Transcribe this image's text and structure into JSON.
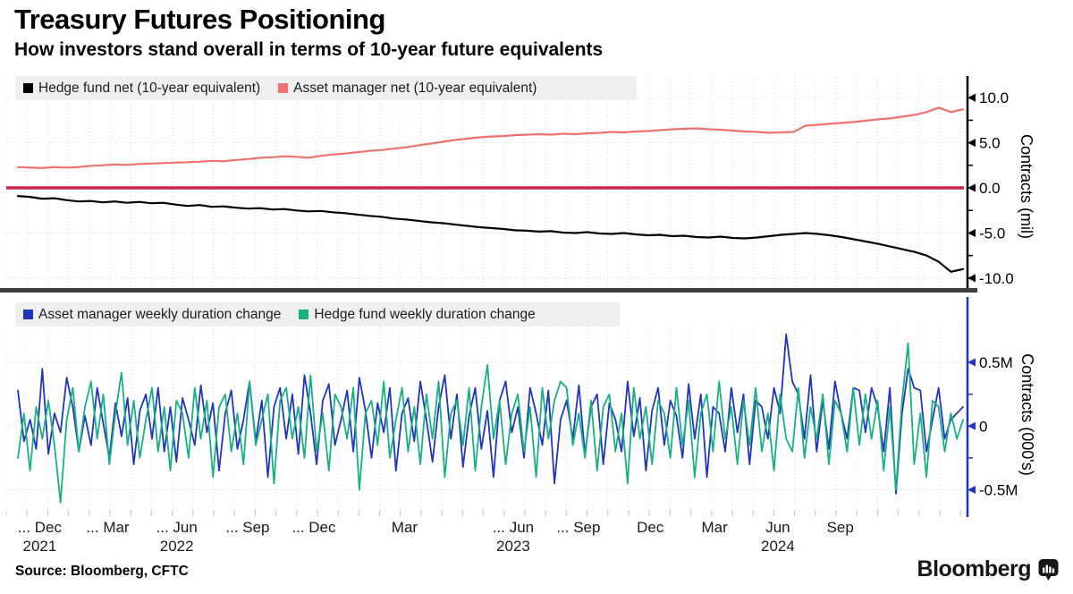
{
  "header": {
    "title": "Treasury Futures Positioning",
    "subtitle": "How investors stand overall in terms of 10-year future equivalents"
  },
  "source": {
    "text": "Source: Bloomberg, CFTC"
  },
  "branding": {
    "logo_text": "Bloomberg",
    "logo_icon": "bar-chart-bubble-icon"
  },
  "colors": {
    "hedge_fund_net": "#000000",
    "asset_manager_net": "#ef726d",
    "zero_line": "#d02346",
    "asset_manager_weekly": "#2136bf",
    "hedge_fund_weekly": "#17b183",
    "grid": "#d9d9d9",
    "divider": "#3e3e3e",
    "legend_bg": "#efefef"
  },
  "xaxis": {
    "labels": [
      {
        "text": "... Dec",
        "year": "2021",
        "f": 0.025
      },
      {
        "text": "... Mar",
        "year": "",
        "f": 0.097
      },
      {
        "text": "... Jun",
        "year": "2022",
        "f": 0.17
      },
      {
        "text": "... Sep",
        "year": "",
        "f": 0.245
      },
      {
        "text": "... Dec",
        "year": "",
        "f": 0.315
      },
      {
        "text": "Mar",
        "year": "",
        "f": 0.411
      },
      {
        "text": "... Jun",
        "year": "2023",
        "f": 0.526
      },
      {
        "text": "... Sep",
        "year": "",
        "f": 0.595
      },
      {
        "text": "Dec",
        "year": "",
        "f": 0.671
      },
      {
        "text": "Mar",
        "year": "",
        "f": 0.739
      },
      {
        "text": "Jun",
        "year": "2024",
        "f": 0.806
      },
      {
        "text": "Sep",
        "year": "",
        "f": 0.872
      }
    ]
  },
  "chart_data": [
    {
      "type": "line",
      "panel": "top",
      "ylabel": "Contracts (mil)",
      "ylim": [
        -11.4,
        12.4
      ],
      "yticks": [
        {
          "v": 10,
          "label": "10.0"
        },
        {
          "v": 5,
          "label": "5.0"
        },
        {
          "v": 0,
          "label": "0.0"
        },
        {
          "v": -5,
          "label": "-5.0"
        },
        {
          "v": -10,
          "label": "-10.0"
        }
      ],
      "yticks_minor": [
        7.5,
        2.5,
        -2.5,
        -7.5
      ],
      "zero_line_color": "#d02346",
      "x_range_note": "weekly, Oct 2021 - Oct 2024",
      "series": [
        {
          "name": "Hedge fund net (10-year equivalent)",
          "color": "#000000",
          "values": [
            -0.9,
            -1.0,
            -1.2,
            -1.15,
            -1.35,
            -1.5,
            -1.45,
            -1.6,
            -1.5,
            -1.65,
            -1.55,
            -1.7,
            -1.65,
            -1.85,
            -2.0,
            -1.9,
            -2.1,
            -2.05,
            -2.2,
            -2.3,
            -2.25,
            -2.4,
            -2.35,
            -2.5,
            -2.6,
            -2.55,
            -2.7,
            -2.8,
            -2.95,
            -3.1,
            -3.2,
            -3.4,
            -3.5,
            -3.65,
            -3.8,
            -3.9,
            -4.05,
            -4.2,
            -4.35,
            -4.45,
            -4.55,
            -4.7,
            -4.75,
            -4.85,
            -4.8,
            -4.95,
            -5.0,
            -4.9,
            -5.05,
            -5.1,
            -5.0,
            -5.15,
            -5.25,
            -5.2,
            -5.35,
            -5.3,
            -5.45,
            -5.5,
            -5.4,
            -5.55,
            -5.6,
            -5.5,
            -5.35,
            -5.2,
            -5.1,
            -5.0,
            -5.1,
            -5.25,
            -5.45,
            -5.7,
            -5.95,
            -6.2,
            -6.5,
            -6.8,
            -7.1,
            -7.5,
            -8.2,
            -9.3,
            -9.0
          ]
        },
        {
          "name": "Asset manager net (10-year equivalent)",
          "color": "#ef726d",
          "values": [
            2.3,
            2.25,
            2.2,
            2.3,
            2.25,
            2.3,
            2.45,
            2.5,
            2.6,
            2.55,
            2.65,
            2.7,
            2.75,
            2.8,
            2.85,
            2.9,
            3.0,
            2.95,
            3.1,
            3.2,
            3.35,
            3.4,
            3.5,
            3.45,
            3.35,
            3.55,
            3.7,
            3.8,
            3.95,
            4.1,
            4.2,
            4.35,
            4.5,
            4.7,
            4.9,
            5.1,
            5.3,
            5.45,
            5.6,
            5.7,
            5.75,
            5.85,
            5.9,
            5.95,
            5.9,
            6.0,
            5.95,
            6.05,
            6.1,
            6.2,
            6.15,
            6.25,
            6.3,
            6.4,
            6.5,
            6.55,
            6.6,
            6.5,
            6.45,
            6.35,
            6.25,
            6.2,
            6.1,
            6.15,
            6.2,
            6.9,
            7.0,
            7.1,
            7.2,
            7.3,
            7.45,
            7.6,
            7.7,
            7.9,
            8.1,
            8.4,
            8.9,
            8.4,
            8.7
          ]
        }
      ]
    },
    {
      "type": "line",
      "panel": "bottom",
      "ylabel": "Contracts (000's)",
      "ylim": [
        -0.7,
        0.76
      ],
      "yticks": [
        {
          "v": 0.5,
          "label": "0.5M"
        },
        {
          "v": 0,
          "label": "0"
        },
        {
          "v": -0.5,
          "label": "-0.5M"
        }
      ],
      "yticks_minor": [
        0.25,
        -0.25
      ],
      "zero_line_color": null,
      "x_range_note": "weekly, Oct 2021 - Oct 2024",
      "series": [
        {
          "name": "Asset manager weekly duration change",
          "color": "#2136bf",
          "values": [
            0.28,
            -0.12,
            0.05,
            -0.18,
            0.45,
            -0.22,
            0.1,
            -0.05,
            0.38,
            0.15,
            -0.2,
            0.08,
            -0.15,
            0.3,
            0.02,
            -0.25,
            0.18,
            -0.08,
            0.22,
            -0.3,
            0.12,
            0.25,
            -0.1,
            0.3,
            -0.2,
            0.15,
            -0.28,
            0.22,
            0.05,
            -0.15,
            0.32,
            -0.05,
            0.18,
            -0.35,
            0.1,
            0.28,
            -0.18,
            0.05,
            0.35,
            -0.12,
            0.2,
            -0.4,
            0.15,
            0.3,
            -0.1,
            0.25,
            -0.22,
            0.4,
            0.1,
            -0.3,
            0.2,
            0.33,
            -0.15,
            0.05,
            0.28,
            -0.2,
            0.38,
            0.12,
            -0.25,
            0.18,
            -0.05,
            0.3,
            -0.35,
            0.1,
            0.22,
            -0.12,
            0.35,
            0.05,
            -0.28,
            0.15,
            0.4,
            -0.1,
            0.25,
            -0.32,
            0.08,
            0.3,
            -0.18,
            0.12,
            -0.4,
            0.2,
            0.35,
            -0.05,
            0.15,
            -0.25,
            0.3,
            0.1,
            -0.15,
            0.28,
            -0.45,
            0.05,
            0.2,
            -0.1,
            0.32,
            -0.22,
            0.15,
            0.25,
            -0.3,
            0.18,
            0.05,
            -0.2,
            0.35,
            -0.08,
            0.22,
            -0.35,
            0.12,
            0.3,
            -0.15,
            0.2,
            0.08,
            -0.25,
            0.33,
            -0.1,
            0.25,
            -0.4,
            0.15,
            0.1,
            -0.2,
            0.3,
            -0.05,
            0.25,
            -0.3,
            0.2,
            0.15,
            -0.1,
            0.3,
            0.1,
            0.72,
            0.35,
            0.25,
            -0.1,
            0.4,
            -0.2,
            0.2,
            -0.18,
            0.35,
            0.1,
            -0.1,
            0.3,
            0.28,
            -0.05,
            0.3,
            0.15,
            -0.2,
            0.3,
            -0.53,
            0.1,
            0.45,
            0.3,
            0.28,
            -0.2,
            0.05,
            0.3,
            -0.1,
            0.05,
            0.1,
            0.15
          ]
        },
        {
          "name": "Hedge fund weekly duration change",
          "color": "#17b183",
          "values": [
            -0.25,
            0.1,
            -0.35,
            0.15,
            -0.1,
            0.2,
            -0.15,
            -0.6,
            0.05,
            0.3,
            -0.2,
            0.15,
            0.35,
            -0.1,
            0.25,
            -0.3,
            0.1,
            0.42,
            -0.15,
            0.2,
            -0.25,
            0.05,
            0.3,
            -0.2,
            0.15,
            -0.35,
            0.2,
            0.1,
            -0.25,
            0.3,
            -0.1,
            0.2,
            -0.4,
            0.15,
            0.25,
            -0.2,
            0.1,
            -0.3,
            0.35,
            -0.15,
            0.05,
            0.25,
            -0.45,
            0.2,
            0.3,
            -0.1,
            0.15,
            -0.25,
            0.4,
            -0.2,
            0.1,
            -0.35,
            0.25,
            0.15,
            -0.1,
            0.3,
            -0.5,
            0.1,
            0.2,
            -0.15,
            0.35,
            -0.25,
            0.05,
            0.3,
            -0.2,
            0.15,
            -0.3,
            0.25,
            -0.1,
            0.35,
            -0.4,
            0.1,
            0.2,
            -0.15,
            0.3,
            -0.35,
            0.15,
            0.48,
            -0.1,
            0.2,
            -0.3,
            0.1,
            0.25,
            -0.2,
            0.15,
            -0.4,
            0.3,
            -0.1,
            0.2,
            0.35,
            0.3,
            -0.15,
            0.1,
            -0.25,
            0.2,
            -0.35,
            0.15,
            0.25,
            -0.2,
            0.1,
            -0.45,
            0.3,
            -0.1,
            0.15,
            -0.3,
            0.2,
            0.1,
            -0.25,
            0.3,
            -0.15,
            0.2,
            -0.4,
            0.1,
            0.25,
            -0.2,
            0.35,
            -0.1,
            0.15,
            -0.3,
            0.2,
            -0.15,
            0.3,
            -0.2,
            0.1,
            -0.35,
            0.25,
            -0.1,
            -0.2,
            0.3,
            -0.25,
            0.15,
            -0.1,
            0.25,
            -0.3,
            0.2,
            0.1,
            -0.2,
            0.3,
            -0.15,
            0.25,
            -0.1,
            0.2,
            -0.35,
            0.15,
            -0.5,
            0.2,
            0.65,
            -0.3,
            0.1,
            -0.4,
            0.2,
            0.15,
            -0.2,
            0.1,
            -0.1,
            0.05
          ]
        }
      ]
    }
  ]
}
